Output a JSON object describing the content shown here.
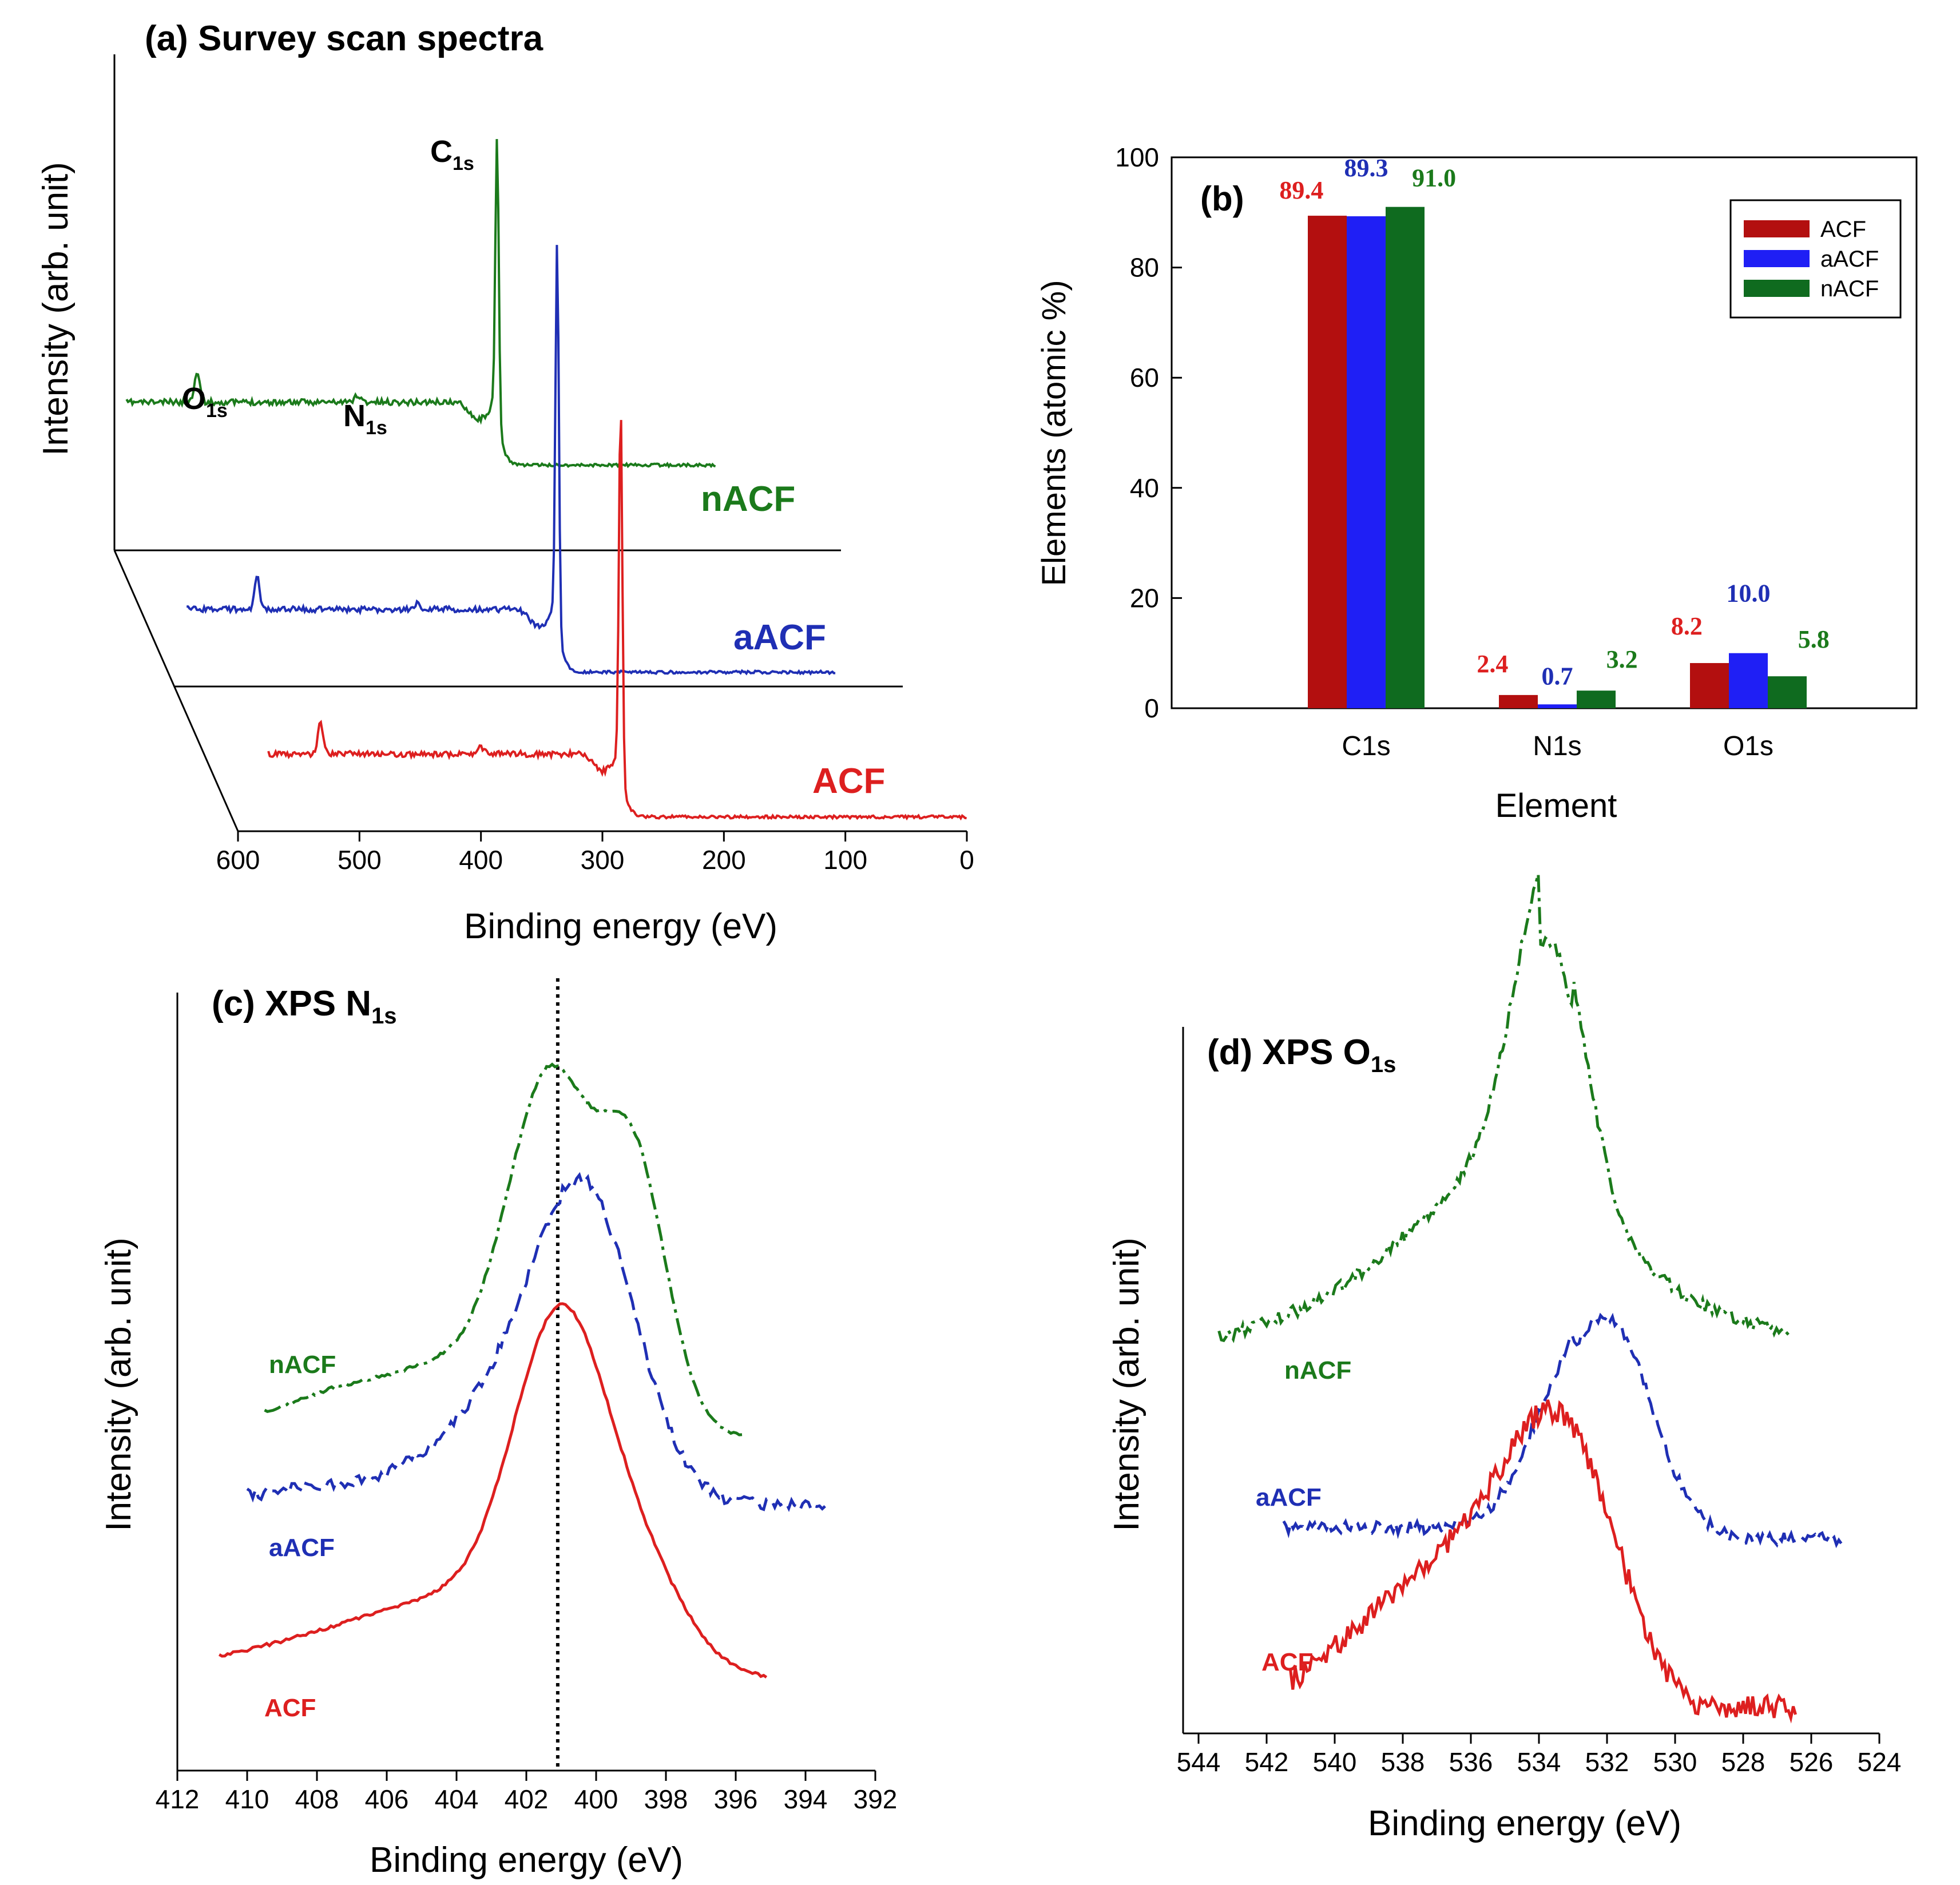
{
  "colors": {
    "acf": "#dd1f1f",
    "aacf": "#1f2fb4",
    "nacf": "#1b7a1b",
    "axis": "#000000",
    "bar_acf": "#b30f0f",
    "bar_aacf": "#1f1ff5",
    "bar_nacf": "#0f6b1f"
  },
  "chart_data": [
    {
      "id": "a",
      "type": "line",
      "title": "(a) Survey scan spectra",
      "xlabel": "Binding energy (eV)",
      "ylabel": "Intensity (arb. unit)",
      "xlim": [
        600,
        0
      ],
      "xticks": [
        "600",
        "500",
        "400",
        "300",
        "200",
        "100",
        "0"
      ],
      "peak_labels": [
        {
          "main": "O",
          "sub": "1s",
          "x": 535
        },
        {
          "main": "N",
          "sub": "1s",
          "x": 400
        },
        {
          "main": "C",
          "sub": "1s",
          "x": 285
        }
      ],
      "series": [
        {
          "name": "nACF",
          "peaks_eV": [
            532,
            400,
            285
          ]
        },
        {
          "name": "aACF",
          "peaks_eV": [
            532,
            400,
            285
          ]
        },
        {
          "name": "ACF",
          "peaks_eV": [
            532,
            400,
            285
          ]
        }
      ]
    },
    {
      "id": "b",
      "type": "bar",
      "panel_label": "(b)",
      "xlabel": "Element",
      "ylabel": "Elements (atomic %)",
      "ylim": [
        0,
        100
      ],
      "yticks": [
        "0",
        "20",
        "40",
        "60",
        "80",
        "100"
      ],
      "categories": [
        "C1s",
        "N1s",
        "O1s"
      ],
      "series": [
        {
          "name": "ACF",
          "values": [
            89.4,
            2.4,
            8.2
          ],
          "labels": [
            "89.4",
            "2.4",
            "8.2"
          ]
        },
        {
          "name": "aACF",
          "values": [
            89.3,
            0.7,
            10.0
          ],
          "labels": [
            "89.3",
            "0.7",
            "10.0"
          ]
        },
        {
          "name": "nACF",
          "values": [
            91.0,
            3.2,
            5.8
          ],
          "labels": [
            "91.0",
            "3.2",
            "5.8"
          ]
        }
      ],
      "legend_position": "top-right"
    },
    {
      "id": "c",
      "type": "line",
      "title_main": "(c) XPS N",
      "title_sub": "1s",
      "xlabel": "Binding energy (eV)",
      "ylabel": "Intensity (arb. unit)",
      "xlim": [
        412,
        392
      ],
      "xticks": [
        "412",
        "410",
        "408",
        "406",
        "404",
        "402",
        "400",
        "398",
        "396",
        "394",
        "392"
      ],
      "reference_line_eV": 401.1,
      "series": [
        {
          "name": "nACF",
          "style": "dash-dot",
          "x_range": [
            409.5,
            395.8
          ],
          "peaks_eV": [
            401.2,
            398.9
          ]
        },
        {
          "name": "aACF",
          "style": "dashed",
          "x_range": [
            410.0,
            393.4
          ],
          "peaks_eV": [
            400.3
          ]
        },
        {
          "name": "ACF",
          "style": "solid",
          "x_range": [
            410.8,
            395.1
          ],
          "peaks_eV": [
            401.0
          ]
        }
      ]
    },
    {
      "id": "d",
      "type": "line",
      "title_main": "(d) XPS O",
      "title_sub": "1s",
      "xlabel": "Binding energy (eV)",
      "ylabel": "Intensity (arb. unit)",
      "xlim": [
        544,
        524
      ],
      "xticks": [
        "544",
        "542",
        "540",
        "538",
        "536",
        "534",
        "532",
        "530",
        "528",
        "526",
        "524"
      ],
      "series": [
        {
          "name": "nACF",
          "style": "dash-dot",
          "x_range": [
            543.4,
            526.6
          ],
          "peaks_eV": [
            533.7
          ]
        },
        {
          "name": "aACF",
          "style": "dashed",
          "x_range": [
            541.5,
            525.1
          ],
          "peaks_eV": [
            531.8
          ]
        },
        {
          "name": "ACF",
          "style": "solid",
          "x_range": [
            541.3,
            526.4
          ],
          "peaks_eV": [
            533.2
          ]
        }
      ]
    }
  ]
}
